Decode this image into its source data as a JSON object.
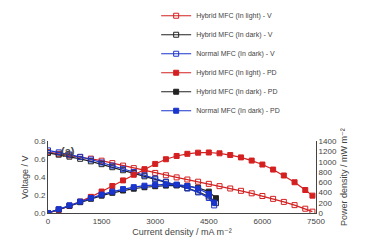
{
  "chart_data": {
    "type": "line",
    "title": "(a)",
    "xlabel": "Current density / mA m⁻²",
    "ylabel": "Voltage / V",
    "y2label": "Power density / mW m⁻²",
    "xlim": [
      0,
      7500
    ],
    "xticks": [
      0,
      1500,
      3000,
      4500,
      6000,
      7500
    ],
    "ylim": [
      0,
      0.8
    ],
    "yticks": [
      {
        "value": 0.0,
        "label": "0.0"
      },
      0.2,
      0.4,
      0.6,
      0.8
    ],
    "y2lim": [
      0,
      1400
    ],
    "y2ticks": [
      0,
      200,
      400,
      600,
      800,
      1000,
      1200,
      1400
    ],
    "grid": false,
    "legend": "upper right",
    "series": [
      {
        "name": "Hybrid MFC (In light) - V",
        "color": "#d42020",
        "marker": "square-open",
        "axis": "y",
        "x": [
          0,
          300,
          600,
          900,
          1200,
          1500,
          1800,
          2100,
          2400,
          2700,
          3000,
          3300,
          3600,
          3900,
          4200,
          4500,
          4800,
          5100,
          5400,
          5700,
          6000,
          6300,
          6600,
          6900,
          7200,
          7400
        ],
        "values": [
          0.68,
          0.662,
          0.644,
          0.626,
          0.608,
          0.585,
          0.558,
          0.53,
          0.502,
          0.474,
          0.448,
          0.422,
          0.398,
          0.374,
          0.35,
          0.326,
          0.3,
          0.274,
          0.248,
          0.22,
          0.19,
          0.158,
          0.124,
          0.088,
          0.048,
          0.015
        ]
      },
      {
        "name": "Hybrid MFC (In dark) - V",
        "color": "#222222",
        "marker": "square-open",
        "axis": "y",
        "x": [
          0,
          300,
          600,
          900,
          1200,
          1500,
          1800,
          2100,
          2400,
          2700,
          3000,
          3300,
          3600,
          3900,
          4200,
          4500,
          4700
        ],
        "values": [
          0.672,
          0.652,
          0.63,
          0.606,
          0.578,
          0.546,
          0.512,
          0.478,
          0.444,
          0.41,
          0.376,
          0.344,
          0.312,
          0.278,
          0.238,
          0.185,
          0.11
        ]
      },
      {
        "name": "Normal MFC (In dark) - V",
        "color": "#1a35cc",
        "marker": "square-open",
        "axis": "y",
        "x": [
          0,
          300,
          600,
          900,
          1200,
          1500,
          1800,
          2100,
          2400,
          2700,
          3000,
          3300,
          3600,
          3900,
          4200,
          4500,
          4650
        ],
        "values": [
          0.7,
          0.678,
          0.654,
          0.628,
          0.598,
          0.565,
          0.53,
          0.494,
          0.458,
          0.422,
          0.386,
          0.35,
          0.313,
          0.274,
          0.23,
          0.168,
          0.085
        ]
      },
      {
        "name": "Hybrid MFC (In light) - PD",
        "color": "#d42020",
        "marker": "square",
        "axis": "y2",
        "x": [
          0,
          300,
          600,
          900,
          1200,
          1500,
          1800,
          2100,
          2400,
          2700,
          3000,
          3300,
          3600,
          3900,
          4200,
          4500,
          4800,
          5100,
          5400,
          5700,
          6000,
          6300,
          6600,
          6900,
          7200,
          7400
        ],
        "values": [
          0,
          60,
          138,
          224,
          316,
          420,
          528,
          638,
          748,
          858,
          960,
          1052,
          1116,
          1158,
          1180,
          1184,
          1168,
          1134,
          1088,
          1026,
          948,
          850,
          734,
          602,
          450,
          340
        ]
      },
      {
        "name": "Hybrid MFC (In dark) - PD",
        "color": "#222222",
        "marker": "square",
        "axis": "y2",
        "x": [
          0,
          300,
          600,
          900,
          1200,
          1500,
          1800,
          2100,
          2400,
          2700,
          3000,
          3300,
          3600,
          3900,
          4200,
          4500,
          4700
        ],
        "values": [
          0,
          70,
          142,
          212,
          278,
          340,
          395,
          440,
          476,
          504,
          524,
          536,
          540,
          528,
          494,
          418,
          290
        ]
      },
      {
        "name": "Normal MFC (In dark) - PD",
        "color": "#1a35cc",
        "marker": "square",
        "axis": "y2",
        "x": [
          0,
          300,
          600,
          900,
          1200,
          1500,
          1800,
          2100,
          2400,
          2700,
          3000,
          3300,
          3600,
          3900,
          4200,
          4500,
          4650
        ],
        "values": [
          0,
          74,
          150,
          224,
          294,
          360,
          418,
          468,
          506,
          534,
          552,
          560,
          556,
          530,
          478,
          374,
          202
        ]
      }
    ]
  }
}
